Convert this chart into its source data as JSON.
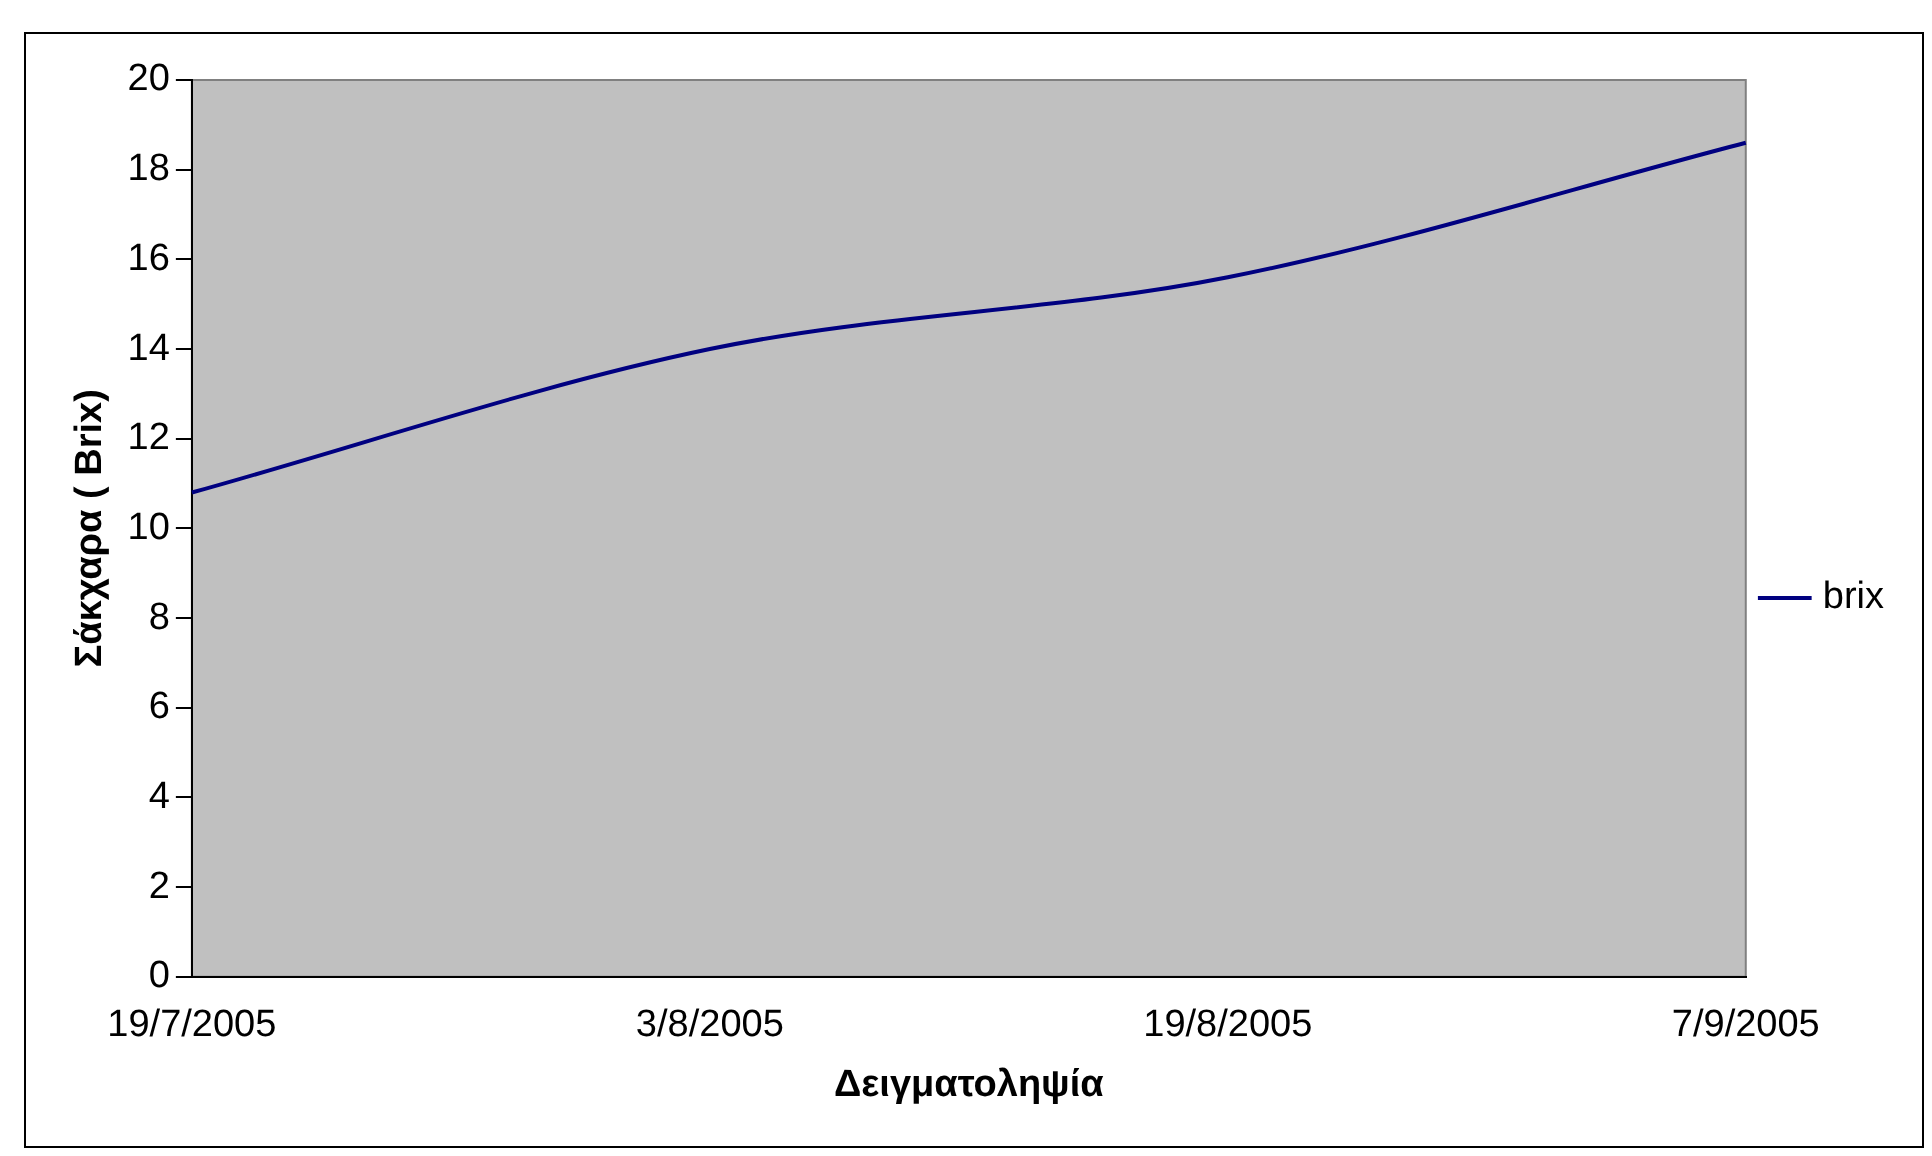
{
  "chart_data": {
    "type": "line",
    "xlabel": "Δειγματοληψία",
    "ylabel": "Σάκχαρα ( Brix)",
    "categories": [
      "19/7/2005",
      "3/8/2005",
      "19/8/2005",
      "7/9/2005"
    ],
    "series": [
      {
        "name": "brix",
        "color": "#000080",
        "values": [
          10.8,
          14.0,
          15.6,
          18.6
        ]
      }
    ],
    "ylim": [
      0,
      20
    ],
    "yticks": [
      0,
      2,
      4,
      6,
      8,
      10,
      12,
      14,
      16,
      18,
      20
    ],
    "grid": false,
    "legend": "right",
    "marker": "none",
    "line_style": "solid"
  }
}
